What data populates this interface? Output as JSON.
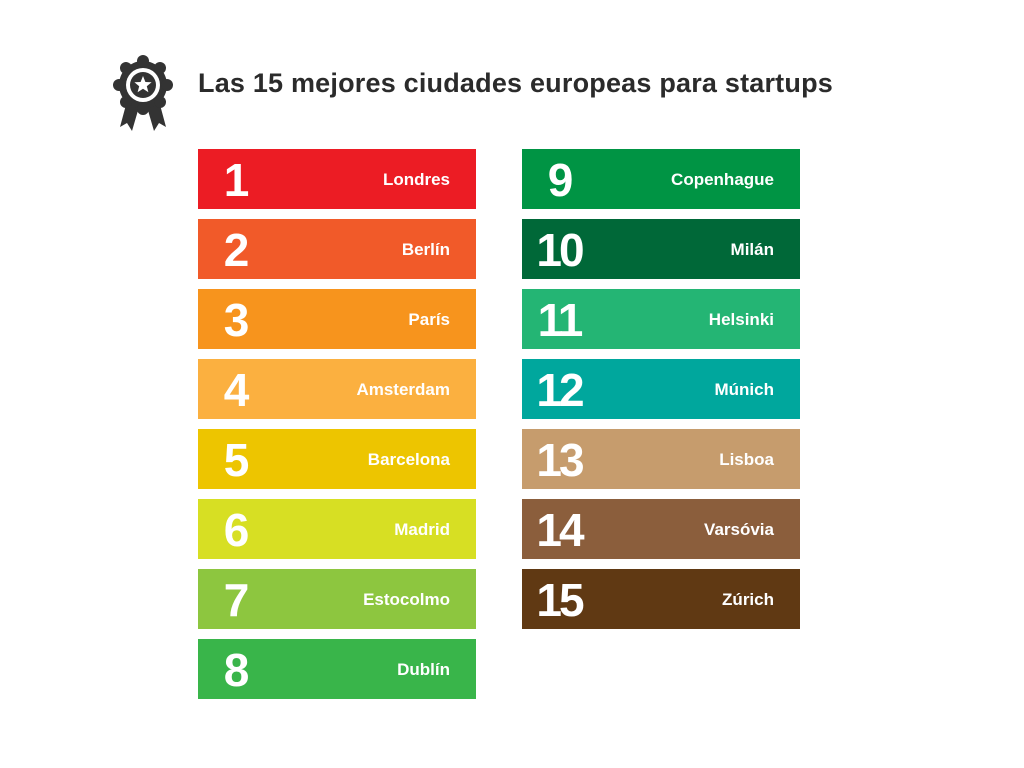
{
  "title": "Las 15 mejores ciudades europeas para startups",
  "icon": "award-badge-icon",
  "icon_color": "#333333",
  "ranking": [
    {
      "rank": "1",
      "city": "Londres",
      "color": "#ec1c24"
    },
    {
      "rank": "2",
      "city": "Berlín",
      "color": "#f15a29"
    },
    {
      "rank": "3",
      "city": "París",
      "color": "#f7941d"
    },
    {
      "rank": "4",
      "city": "Amsterdam",
      "color": "#fbb040"
    },
    {
      "rank": "5",
      "city": "Barcelona",
      "color": "#edc500"
    },
    {
      "rank": "6",
      "city": "Madrid",
      "color": "#d7df23"
    },
    {
      "rank": "7",
      "city": "Estocolmo",
      "color": "#8dc63f"
    },
    {
      "rank": "8",
      "city": "Dublín",
      "color": "#39b54a"
    },
    {
      "rank": "9",
      "city": "Copenhague",
      "color": "#009444"
    },
    {
      "rank": "10",
      "city": "Milán",
      "color": "#006838"
    },
    {
      "rank": "11",
      "city": "Helsinki",
      "color": "#24b574"
    },
    {
      "rank": "12",
      "city": "Múnich",
      "color": "#00a79d"
    },
    {
      "rank": "13",
      "city": "Lisboa",
      "color": "#c69c6d"
    },
    {
      "rank": "14",
      "city": "Varsóvia",
      "color": "#8b5e3c"
    },
    {
      "rank": "15",
      "city": "Zúrich",
      "color": "#603913"
    }
  ]
}
